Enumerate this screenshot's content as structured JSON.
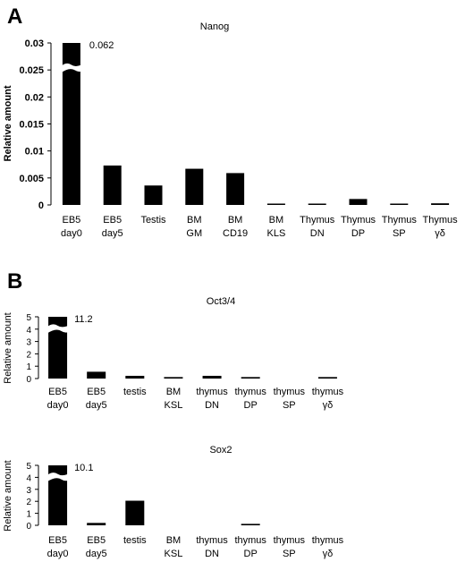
{
  "panels": [
    {
      "letter": "A"
    },
    {
      "letter": "B"
    }
  ],
  "chart_data": [
    {
      "type": "bar",
      "title": "Nanog",
      "ylabel": "Relative amount",
      "ylim": [
        0,
        0.03
      ],
      "yticks": [
        "0",
        "0.005",
        "0.01",
        "0.015",
        "0.02",
        "0.025",
        "0.03"
      ],
      "categories": [
        [
          "EB5",
          "day0"
        ],
        [
          "EB5",
          "day5"
        ],
        [
          "Testis",
          ""
        ],
        [
          "BM",
          "GM"
        ],
        [
          "BM",
          "CD19"
        ],
        [
          "BM",
          "KLS"
        ],
        [
          "Thymus",
          "DN"
        ],
        [
          "Thymus",
          "DP"
        ],
        [
          "Thymus",
          "SP"
        ],
        [
          "Thymus",
          "γδ"
        ]
      ],
      "values": [
        0.062,
        0.0073,
        0.0036,
        0.0067,
        0.0059,
        0.0002,
        0.0002,
        0.0011,
        0.0002,
        0.0003
      ],
      "axis_break": {
        "category_index": 0,
        "label": "0.062"
      },
      "bar_color": "#000000"
    },
    {
      "type": "bar",
      "title": "Oct3/4",
      "ylabel": "Relative amount",
      "ylim": [
        0,
        5
      ],
      "yticks": [
        "0",
        "1",
        "2",
        "3",
        "4",
        "5"
      ],
      "categories": [
        [
          "EB5",
          "day0"
        ],
        [
          "EB5",
          "day5"
        ],
        [
          "testis",
          ""
        ],
        [
          "BM",
          "KSL"
        ],
        [
          "thymus",
          "DN"
        ],
        [
          "thymus",
          "DP"
        ],
        [
          "thymus",
          "SP"
        ],
        [
          "thymus",
          "γδ"
        ]
      ],
      "values": [
        11.2,
        0.55,
        0.22,
        0.12,
        0.22,
        0.12,
        0.0,
        0.12
      ],
      "axis_break": {
        "category_index": 0,
        "label": "11.2"
      },
      "bar_color": "#000000"
    },
    {
      "type": "bar",
      "title": "Sox2",
      "ylabel": "Relative amount",
      "ylim": [
        0,
        5
      ],
      "yticks": [
        "0",
        "1",
        "2",
        "3",
        "4",
        "5"
      ],
      "categories": [
        [
          "EB5",
          "day0"
        ],
        [
          "EB5",
          "day5"
        ],
        [
          "testis",
          ""
        ],
        [
          "BM",
          "KSL"
        ],
        [
          "thymus",
          "DN"
        ],
        [
          "thymus",
          "DP"
        ],
        [
          "thymus",
          "SP"
        ],
        [
          "thymus",
          "γδ"
        ]
      ],
      "values": [
        10.1,
        0.2,
        2.05,
        0.0,
        0.0,
        0.12,
        0.0,
        0.0
      ],
      "axis_break": {
        "category_index": 0,
        "label": "10.1"
      },
      "bar_color": "#000000"
    }
  ]
}
